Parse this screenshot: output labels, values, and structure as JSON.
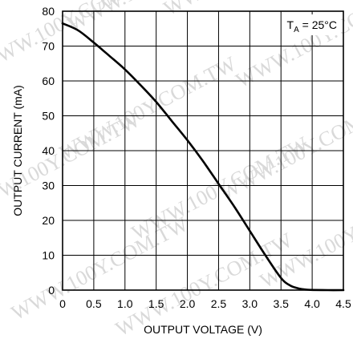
{
  "chart_data": {
    "type": "line",
    "title": "",
    "xlabel": "OUTPUT VOLTAGE (V)",
    "ylabel": "OUTPUT CURRENT (mA)",
    "xlim": [
      0,
      4.5
    ],
    "ylim": [
      0,
      80
    ],
    "grid": true,
    "x_ticks": [
      0,
      0.5,
      1.0,
      1.5,
      2.0,
      2.5,
      3.0,
      3.5,
      4.0,
      4.5
    ],
    "x_tick_labels": [
      "0",
      "0.5",
      "1.0",
      "1.5",
      "2.0",
      "2.5",
      "3.0",
      "3.5",
      "4.0",
      "4.5"
    ],
    "y_ticks": [
      0,
      10,
      20,
      30,
      40,
      50,
      60,
      70,
      80
    ],
    "y_tick_labels": [
      "0",
      "10",
      "20",
      "30",
      "40",
      "50",
      "60",
      "70",
      "80"
    ],
    "annotation": {
      "main": "T",
      "sub": "A",
      "rest": " = 25°C",
      "position": "top-right"
    },
    "series": [
      {
        "x": [
          0,
          0.25,
          0.5,
          0.75,
          1.0,
          1.25,
          1.5,
          1.75,
          2.0,
          2.25,
          2.5,
          2.75,
          3.0,
          3.25,
          3.5,
          3.65,
          3.8,
          3.9,
          4.0,
          4.25,
          4.5
        ],
        "values": [
          76.5,
          74.5,
          71.0,
          67.2,
          63.3,
          58.8,
          54.0,
          48.5,
          43.0,
          37.0,
          30.5,
          24.0,
          17.0,
          10.0,
          3.5,
          1.3,
          0.4,
          0.15,
          0.05,
          0.0,
          0.0
        ]
      }
    ]
  },
  "watermark": {
    "text": "WWW.100Y.COM.TW"
  }
}
